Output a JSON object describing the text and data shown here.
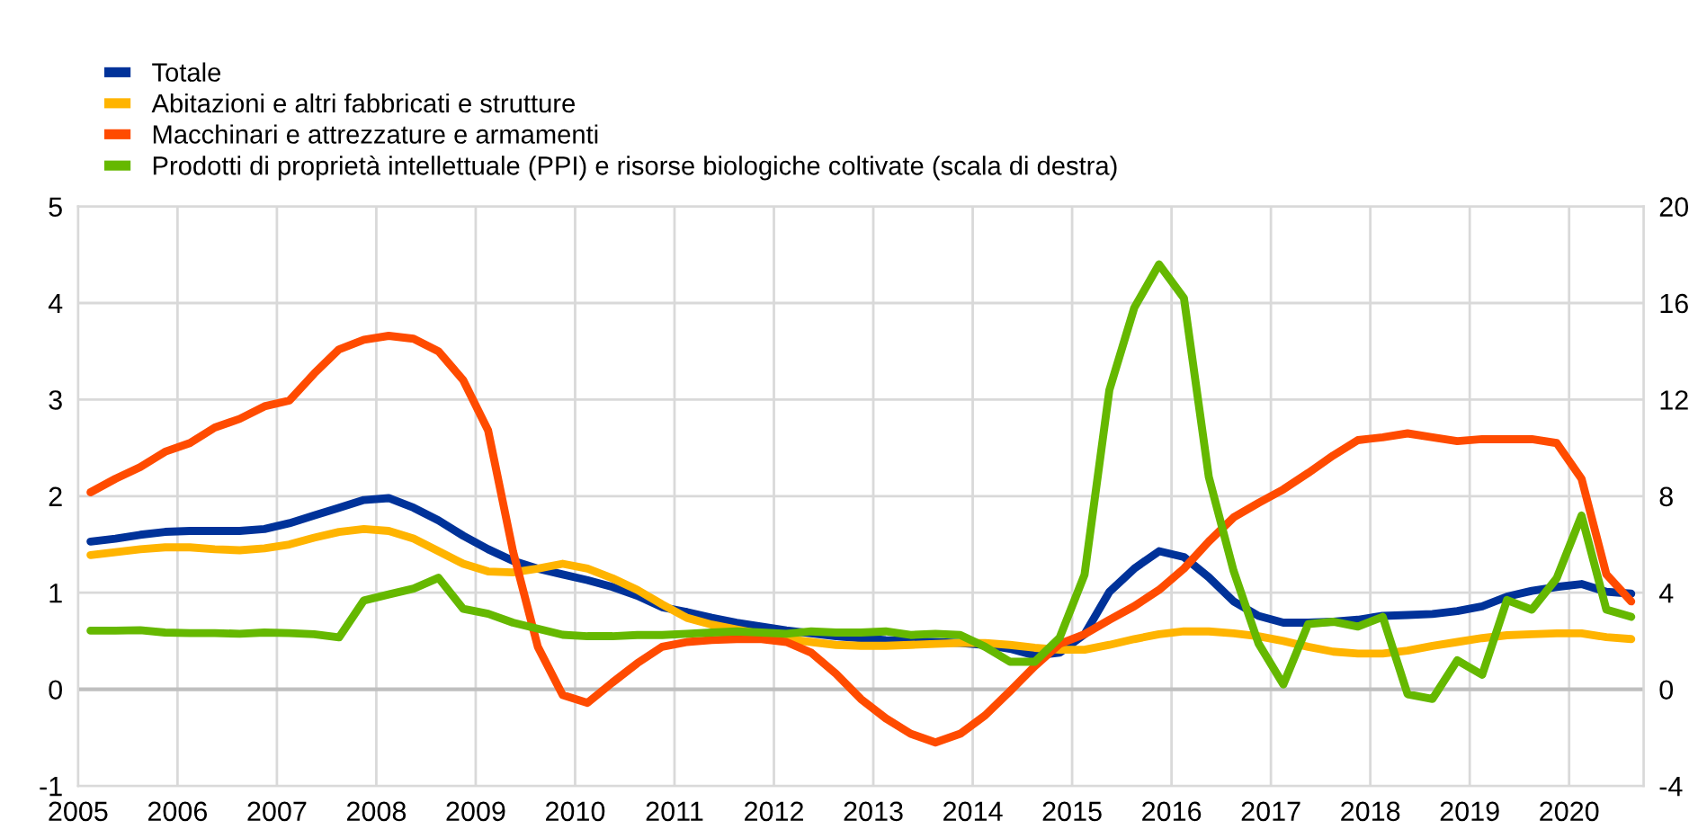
{
  "chart_data": {
    "type": "line",
    "x": [
      2005.125,
      2005.375,
      2005.625,
      2005.875,
      2006.125,
      2006.375,
      2006.625,
      2006.875,
      2007.125,
      2007.375,
      2007.625,
      2007.875,
      2008.125,
      2008.375,
      2008.625,
      2008.875,
      2009.125,
      2009.375,
      2009.625,
      2009.875,
      2010.125,
      2010.375,
      2010.625,
      2010.875,
      2011.125,
      2011.375,
      2011.625,
      2011.875,
      2012.125,
      2012.375,
      2012.625,
      2012.875,
      2013.125,
      2013.375,
      2013.625,
      2013.875,
      2014.125,
      2014.375,
      2014.625,
      2014.875,
      2015.125,
      2015.375,
      2015.625,
      2015.875,
      2016.125,
      2016.375,
      2016.625,
      2016.875,
      2017.125,
      2017.375,
      2017.625,
      2017.875,
      2018.125,
      2018.375,
      2018.625,
      2018.875,
      2019.125,
      2019.375,
      2019.625,
      2019.875,
      2020.125,
      2020.375,
      2020.625
    ],
    "series": [
      {
        "name": "Totale",
        "color": "#003299",
        "values": [
          1.53,
          1.56,
          1.6,
          1.63,
          1.64,
          1.64,
          1.64,
          1.66,
          1.72,
          1.8,
          1.88,
          1.96,
          1.98,
          1.88,
          1.75,
          1.59,
          1.45,
          1.33,
          1.25,
          1.19,
          1.13,
          1.06,
          0.97,
          0.85,
          0.8,
          0.74,
          0.69,
          0.65,
          0.61,
          0.58,
          0.55,
          0.53,
          0.51,
          0.5,
          0.49,
          0.48,
          0.46,
          0.42,
          0.35,
          0.38,
          0.57,
          1.01,
          1.25,
          1.43,
          1.37,
          1.16,
          0.91,
          0.76,
          0.69,
          0.69,
          0.7,
          0.72,
          0.76,
          0.77,
          0.78,
          0.81,
          0.86,
          0.96,
          1.02,
          1.06,
          1.09,
          1.01,
          0.99
        ]
      },
      {
        "name": "Abitazioni e altri fabbricati e strutture",
        "color": "#ffb400",
        "values": [
          1.39,
          1.42,
          1.45,
          1.47,
          1.47,
          1.45,
          1.44,
          1.46,
          1.5,
          1.57,
          1.63,
          1.66,
          1.64,
          1.56,
          1.43,
          1.3,
          1.22,
          1.21,
          1.25,
          1.3,
          1.25,
          1.15,
          1.03,
          0.88,
          0.74,
          0.67,
          0.62,
          0.57,
          0.52,
          0.49,
          0.46,
          0.45,
          0.45,
          0.46,
          0.47,
          0.48,
          0.48,
          0.46,
          0.43,
          0.41,
          0.41,
          0.46,
          0.52,
          0.57,
          0.6,
          0.6,
          0.58,
          0.55,
          0.5,
          0.44,
          0.39,
          0.37,
          0.37,
          0.4,
          0.45,
          0.49,
          0.53,
          0.56,
          0.57,
          0.58,
          0.58,
          0.54,
          0.52
        ]
      },
      {
        "name": "Macchinari e attrezzature e armamenti",
        "color": "#ff4b00",
        "values": [
          2.04,
          2.18,
          2.3,
          2.46,
          2.55,
          2.71,
          2.8,
          2.93,
          2.99,
          3.27,
          3.52,
          3.62,
          3.66,
          3.63,
          3.5,
          3.2,
          2.68,
          1.43,
          0.44,
          -0.06,
          -0.14,
          0.07,
          0.27,
          0.44,
          0.49,
          0.51,
          0.52,
          0.52,
          0.49,
          0.38,
          0.16,
          -0.1,
          -0.3,
          -0.46,
          -0.55,
          -0.46,
          -0.27,
          -0.02,
          0.24,
          0.47,
          0.57,
          0.72,
          0.86,
          1.03,
          1.25,
          1.53,
          1.78,
          1.93,
          2.07,
          2.24,
          2.42,
          2.58,
          2.61,
          2.65,
          2.61,
          2.57,
          2.59,
          2.59,
          2.59,
          2.55,
          2.18,
          1.19,
          0.91
        ]
      },
      {
        "name": "Prodotti di proprietà intellettuale (PPI) e risorse biologiche coltivate (scala di destra)",
        "color": "#65b800",
        "axis": "y2",
        "values": [
          2.43,
          2.43,
          2.45,
          2.35,
          2.33,
          2.33,
          2.3,
          2.35,
          2.33,
          2.28,
          2.15,
          3.68,
          3.93,
          4.17,
          4.62,
          3.33,
          3.13,
          2.76,
          2.51,
          2.26,
          2.2,
          2.2,
          2.25,
          2.25,
          2.3,
          2.35,
          2.4,
          2.35,
          2.3,
          2.4,
          2.35,
          2.35,
          2.4,
          2.25,
          2.3,
          2.25,
          1.76,
          1.14,
          1.14,
          2.14,
          4.75,
          12.4,
          15.8,
          17.6,
          16.2,
          8.8,
          4.9,
          1.9,
          0.2,
          2.7,
          2.8,
          2.6,
          3.0,
          -0.2,
          -0.4,
          1.2,
          0.6,
          3.7,
          3.3,
          4.6,
          7.2,
          3.3,
          3.0
        ]
      }
    ],
    "xlim": [
      2005,
      2020.75
    ],
    "xticks": [
      2005,
      2006,
      2007,
      2008,
      2009,
      2010,
      2011,
      2012,
      2013,
      2014,
      2015,
      2016,
      2017,
      2018,
      2019,
      2020
    ],
    "ylim": [
      -1,
      5
    ],
    "yticks": [
      -1,
      0,
      1,
      2,
      3,
      4,
      5
    ],
    "y2lim": [
      -4,
      20
    ],
    "y2ticks": [
      -4,
      0,
      4,
      8,
      12,
      16,
      20
    ],
    "ref_lines": [
      {
        "axis": "y",
        "value": 0,
        "color": "#bfbfbf"
      }
    ],
    "grid": true,
    "legend": "top left",
    "marker": "none",
    "line_style": "solid"
  }
}
